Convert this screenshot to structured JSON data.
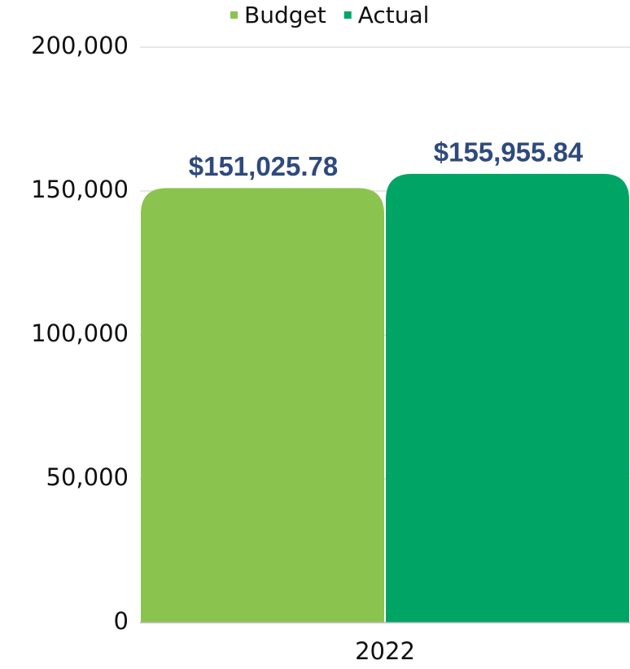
{
  "chart_data": {
    "type": "bar",
    "categories": [
      "2022"
    ],
    "series": [
      {
        "name": "Budget",
        "color": "#8bc34f",
        "values": [
          151025.78
        ],
        "value_labels": [
          "$151,025.78"
        ]
      },
      {
        "name": "Actual",
        "color": "#00a566",
        "values": [
          155955.84
        ],
        "value_labels": [
          "$155,955.84"
        ]
      }
    ],
    "ylim": [
      0,
      200000
    ],
    "yticks": [
      0,
      {
        "value": 50000,
        "label": "50,000"
      },
      {
        "value": 100000,
        "label": "100,000"
      },
      {
        "value": 150000,
        "label": "150,000"
      },
      {
        "value": 200000,
        "label": "200,000"
      }
    ],
    "grid": true,
    "legend": "top"
  }
}
